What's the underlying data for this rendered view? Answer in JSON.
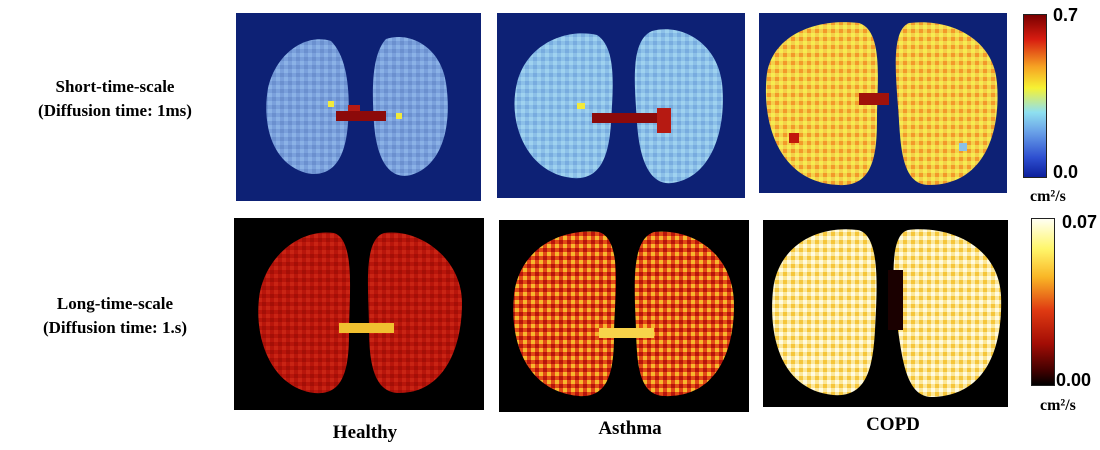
{
  "rows": {
    "short": {
      "line1": "Short-time-scale",
      "line2": "(Diffusion time: 1ms)"
    },
    "long": {
      "line1": "Long-time-scale",
      "line2": "(Diffusion time: 1.s)"
    }
  },
  "columns": {
    "healthy": "Healthy",
    "asthma": "Asthma",
    "copd": "COPD"
  },
  "colorbars": {
    "short": {
      "max": "0.7",
      "min": "0.0",
      "unit": "cm²/s"
    },
    "long": {
      "max": "0.07",
      "min": "0.00",
      "unit": "cm²/s"
    }
  },
  "colors": {
    "short_background": "#0d2175",
    "long_background": "#000000",
    "short_healthy_fill": "#7aa0dc",
    "short_asthma_fill": "#8cc0e8",
    "short_copd_fill": "#f4d04a",
    "long_healthy_fill": "#b8150b",
    "long_asthma_fill": "#e24a16",
    "long_copd_fill": "#fbe79a"
  }
}
